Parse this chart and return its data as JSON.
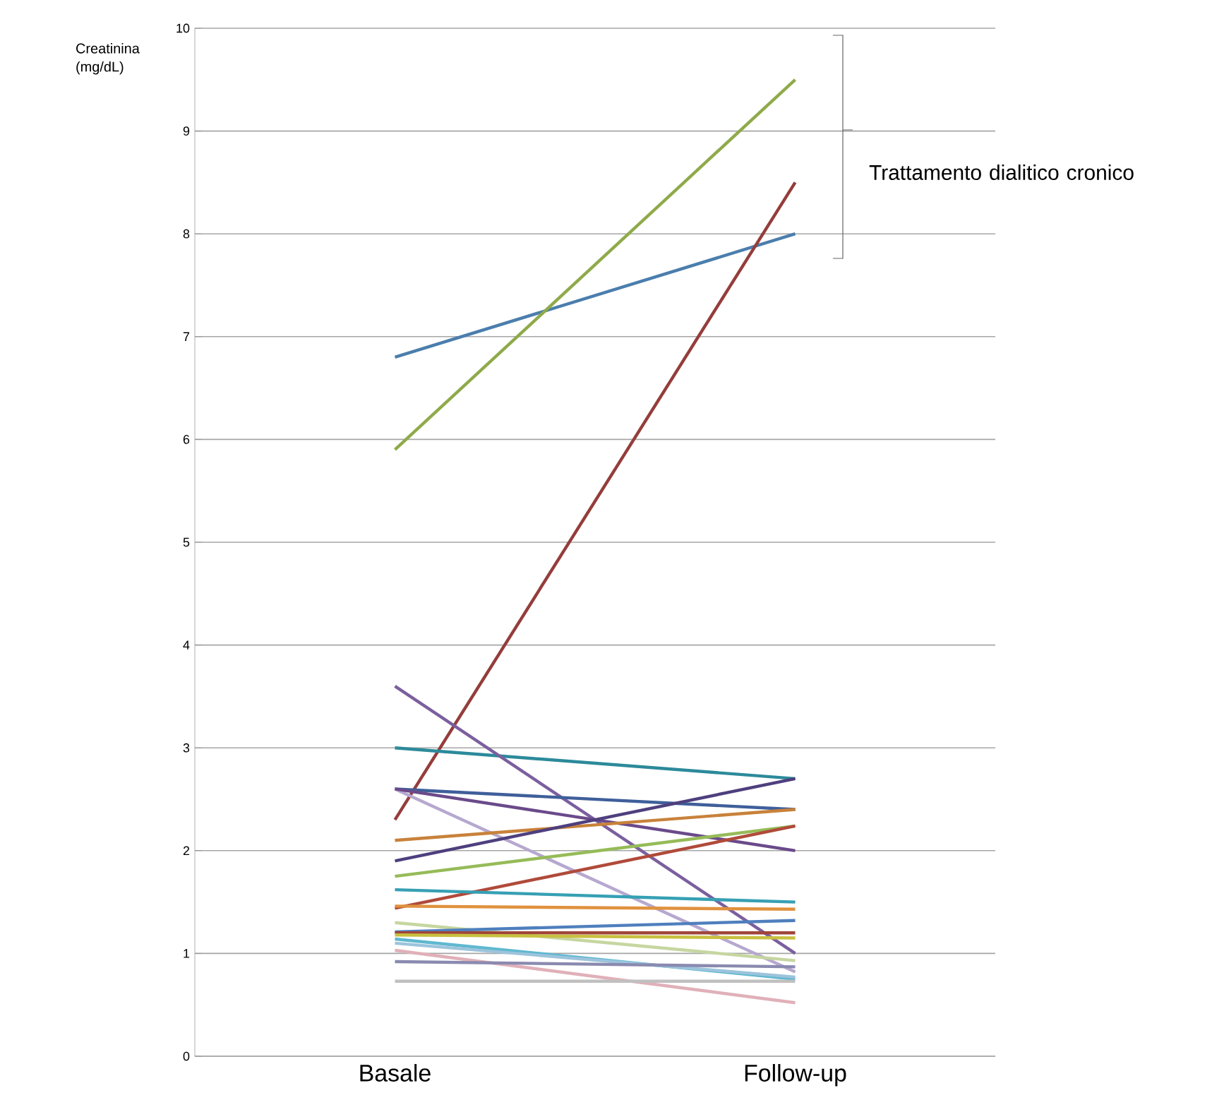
{
  "chart_data": {
    "type": "line",
    "ylabel": "Creatinina (mg/dL)",
    "categories": [
      "Basale",
      "Follow-up"
    ],
    "ylim": [
      0,
      10
    ],
    "yticks": [
      0,
      1,
      2,
      3,
      4,
      5,
      6,
      7,
      8,
      9,
      10
    ],
    "grid": "y",
    "marker": "none",
    "line_style": "solid",
    "annotations": [
      "Trattamento dialitico cronico"
    ],
    "series": [
      {
        "color": "#4a7ead",
        "values": [
          6.8,
          8.0
        ]
      },
      {
        "color": "#8faa4a",
        "values": [
          5.9,
          9.5
        ]
      },
      {
        "color": "#943d3b",
        "values": [
          2.3,
          8.5
        ]
      },
      {
        "color": "#2c8a9a",
        "values": [
          3.0,
          2.7
        ]
      },
      {
        "color": "#7b5f9e",
        "values": [
          3.6,
          1.0
        ]
      },
      {
        "color": "#3f5f9a",
        "values": [
          2.6,
          2.4
        ]
      },
      {
        "color": "#b6a8cf",
        "values": [
          2.6,
          0.82
        ]
      },
      {
        "color": "#6a4a8a",
        "values": [
          2.6,
          2.0
        ]
      },
      {
        "color": "#c8823a",
        "values": [
          2.1,
          2.4
        ]
      },
      {
        "color": "#4e3f7e",
        "values": [
          1.9,
          2.7
        ]
      },
      {
        "color": "#96bb58",
        "values": [
          1.75,
          2.24
        ]
      },
      {
        "color": "#b04a3a",
        "values": [
          1.44,
          2.24
        ]
      },
      {
        "color": "#36a0b4",
        "values": [
          1.62,
          1.5
        ]
      },
      {
        "color": "#e0913e",
        "values": [
          1.46,
          1.43
        ]
      },
      {
        "color": "#c6d6a0",
        "values": [
          1.3,
          0.93
        ]
      },
      {
        "color": "#4f7fbd",
        "values": [
          1.21,
          1.32
        ]
      },
      {
        "color": "#a0453a",
        "values": [
          1.2,
          1.2
        ]
      },
      {
        "color": "#c8c040",
        "values": [
          1.18,
          1.15
        ]
      },
      {
        "color": "#5fb8d0",
        "values": [
          1.14,
          0.75
        ]
      },
      {
        "color": "#9cc4dc",
        "values": [
          1.1,
          0.77
        ]
      },
      {
        "color": "#e0b0b8",
        "values": [
          1.03,
          0.52
        ]
      },
      {
        "color": "#8a8ab0",
        "values": [
          0.92,
          0.87
        ]
      },
      {
        "color": "#c0c0c0",
        "values": [
          0.73,
          0.73
        ]
      }
    ]
  }
}
